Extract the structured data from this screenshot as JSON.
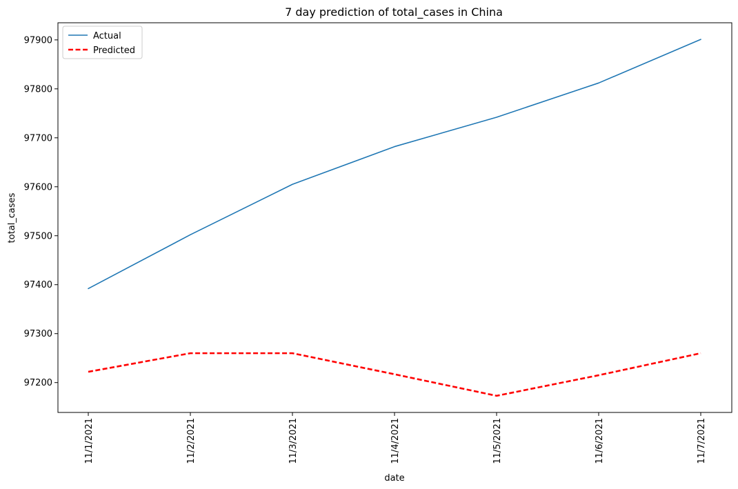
{
  "chart_data": {
    "type": "line",
    "title": "7 day prediction of total_cases in China",
    "xlabel": "date",
    "ylabel": "total_cases",
    "x": [
      "11/1/2021",
      "11/2/2021",
      "11/3/2021",
      "11/4/2021",
      "11/5/2021",
      "11/6/2021",
      "11/7/2021"
    ],
    "ylim": [
      97139,
      97935
    ],
    "yticks": [
      97200,
      97300,
      97400,
      97500,
      97600,
      97700,
      97800,
      97900
    ],
    "series": [
      {
        "name": "Actual",
        "values": [
          97392,
          97502,
          97605,
          97682,
          97742,
          97812,
          97901
        ],
        "color": "#1f77b4",
        "style": "solid"
      },
      {
        "name": "Predicted",
        "values": [
          97222,
          97260,
          97260,
          97217,
          97173,
          97215,
          97260
        ],
        "color": "#ff0000",
        "style": "dashed"
      }
    ],
    "legend_position": "top-left",
    "grid": false
  }
}
